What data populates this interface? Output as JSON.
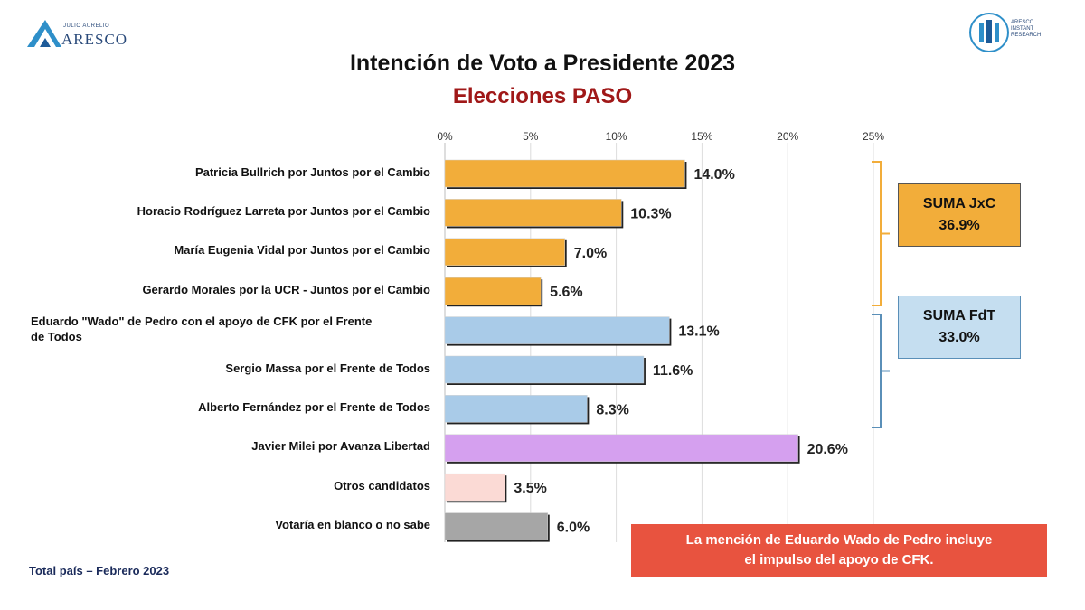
{
  "brand": {
    "left_small": "JULIO AURELIO",
    "left_name": "ARESCO",
    "right_lines": [
      "ARESCO",
      "INSTANT",
      "RESEARCH"
    ]
  },
  "colors": {
    "jxc": "#f2ad3a",
    "fdt": "#a9cbe8",
    "milei": "#d5a0ef",
    "otros": "#fbdad5",
    "blanco": "#a6a6a6",
    "title": "#111111",
    "subtitle": "#a01818",
    "note": "#e8533f"
  },
  "chart_data": {
    "type": "bar",
    "orientation": "horizontal",
    "title": "Intención de Voto a Presidente 2023",
    "subtitle": "Elecciones PASO",
    "xlim": [
      0,
      25
    ],
    "xticks": [
      "0%",
      "5%",
      "10%",
      "15%",
      "20%",
      "25%"
    ],
    "grid": true,
    "categories": [
      "Patricia Bullrich por Juntos por el Cambio",
      "Horacio Rodríguez Larreta por Juntos por el Cambio",
      "María Eugenia Vidal por Juntos por el Cambio",
      "Gerardo Morales por la UCR - Juntos por el Cambio",
      "Eduardo \"Wado\" de Pedro con el apoyo de CFK por el Frente de Todos",
      "Sergio Massa por el Frente de Todos",
      "Alberto Fernández por el Frente de Todos",
      "Javier Milei por Avanza Libertad",
      "Otros candidatos",
      "Votaría en blanco o no sabe"
    ],
    "category_lines": [
      [
        "Patricia Bullrich por Juntos por el Cambio"
      ],
      [
        "Horacio Rodríguez Larreta por Juntos por el Cambio"
      ],
      [
        "María Eugenia Vidal por Juntos por el Cambio"
      ],
      [
        "Gerardo Morales por la UCR - Juntos por el Cambio"
      ],
      [
        "Eduardo \"Wado\" de Pedro con el apoyo de CFK por el Frente",
        "de Todos"
      ],
      [
        "Sergio Massa por el Frente de Todos"
      ],
      [
        "Alberto Fernández por el Frente de Todos"
      ],
      [
        "Javier Milei por Avanza Libertad"
      ],
      [
        "Otros candidatos"
      ],
      [
        "Votaría en blanco o no sabe"
      ]
    ],
    "values": [
      14.0,
      10.3,
      7.0,
      5.6,
      13.1,
      11.6,
      8.3,
      20.6,
      3.5,
      6.0
    ],
    "value_labels": [
      "14.0%",
      "10.3%",
      "7.0%",
      "5.6%",
      "13.1%",
      "11.6%",
      "8.3%",
      "20.6%",
      "3.5%",
      "6.0%"
    ],
    "bar_groups": [
      "jxc",
      "jxc",
      "jxc",
      "jxc",
      "fdt",
      "fdt",
      "fdt",
      "milei",
      "otros",
      "blanco"
    ],
    "sums": [
      {
        "label": "SUMA JxC",
        "value": "36.9%",
        "group": "jxc"
      },
      {
        "label": "SUMA FdT",
        "value": "33.0%",
        "group": "fdt"
      }
    ]
  },
  "note_lines": [
    "La mención de Eduardo Wado de Pedro incluye",
    "el impulso del apoyo de CFK."
  ],
  "footer": "Total país – Febrero 2023"
}
